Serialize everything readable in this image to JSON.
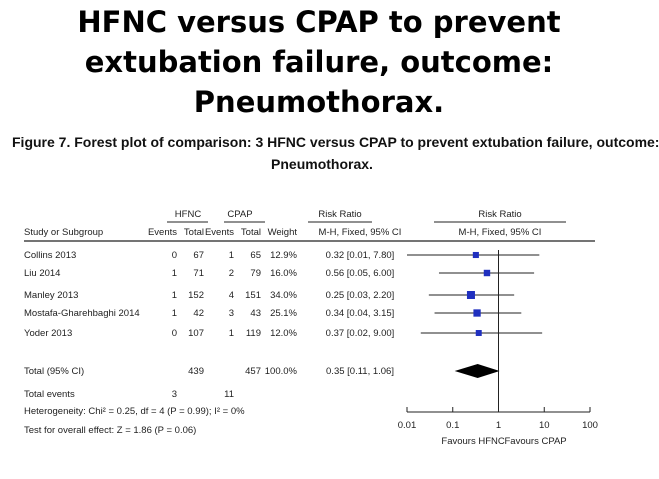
{
  "slide": {
    "title_lines": [
      "HFNC versus CPAP to prevent",
      "extubation failure, outcome:",
      "Pneumothorax."
    ]
  },
  "figure": {
    "caption_line1": "Figure 7.   Forest plot of comparison: 3 HFNC versus CPAP to prevent extubation failure, outcome:",
    "caption_line2": "Pneumothorax."
  },
  "chart_data": {
    "type": "table",
    "subtype": "forest-plot",
    "group_headers": {
      "hfnc": "HFNC",
      "cpap": "CPAP",
      "rr_text": "Risk Ratio",
      "rr_plot": "Risk Ratio"
    },
    "columns": [
      "Study or Subgroup",
      "Events",
      "Total",
      "Events",
      "Total",
      "Weight",
      "M-H, Fixed, 95% CI",
      "M-H, Fixed, 95% CI"
    ],
    "studies": [
      {
        "name": "Collins 2013",
        "hfnc_events": "0",
        "hfnc_total": "67",
        "cpap_events": "1",
        "cpap_total": "65",
        "weight": "12.9%",
        "ci_text": "0.32 [0.01, 7.80]",
        "rr": 0.32,
        "lo": 0.01,
        "hi": 7.8,
        "weight_pct": 12.9
      },
      {
        "name": "Liu 2014",
        "hfnc_events": "1",
        "hfnc_total": "71",
        "cpap_events": "2",
        "cpap_total": "79",
        "weight": "16.0%",
        "ci_text": "0.56 [0.05, 6.00]",
        "rr": 0.56,
        "lo": 0.05,
        "hi": 6.0,
        "weight_pct": 16.0
      },
      {
        "name": "Manley 2013",
        "hfnc_events": "1",
        "hfnc_total": "152",
        "cpap_events": "4",
        "cpap_total": "151",
        "weight": "34.0%",
        "ci_text": "0.25 [0.03, 2.20]",
        "rr": 0.25,
        "lo": 0.03,
        "hi": 2.2,
        "weight_pct": 34.0
      },
      {
        "name": "Mostafa-Gharehbaghi 2014",
        "hfnc_events": "1",
        "hfnc_total": "42",
        "cpap_events": "3",
        "cpap_total": "43",
        "weight": "25.1%",
        "ci_text": "0.34 [0.04, 3.15]",
        "rr": 0.34,
        "lo": 0.04,
        "hi": 3.15,
        "weight_pct": 25.1
      },
      {
        "name": "Yoder 2013",
        "hfnc_events": "0",
        "hfnc_total": "107",
        "cpap_events": "1",
        "cpap_total": "119",
        "weight": "12.0%",
        "ci_text": "0.37 [0.02, 9.00]",
        "rr": 0.37,
        "lo": 0.02,
        "hi": 9.0,
        "weight_pct": 12.0
      }
    ],
    "total": {
      "name": "Total (95% CI)",
      "hfnc_total": "439",
      "cpap_total": "457",
      "weight": "100.0%",
      "ci_text": "0.35 [0.11, 1.06]",
      "rr": 0.35,
      "lo": 0.11,
      "hi": 1.06
    },
    "total_events": {
      "name": "Total events",
      "hfnc": "3",
      "cpap": "11"
    },
    "heterogeneity": "Heterogeneity: Chi² = 0.25, df = 4 (P = 0.99); I² = 0%",
    "overall_effect": "Test for overall effect: Z = 1.86 (P = 0.06)",
    "x_axis": {
      "scale": "log",
      "xlim": [
        0.01,
        100
      ],
      "ticks": [
        0.01,
        0.1,
        1,
        10,
        100
      ],
      "tick_labels": [
        "0.01",
        "0.1",
        "1",
        "10",
        "100"
      ],
      "reference_line": 1
    },
    "favours_left": "Favours HFNC",
    "favours_right": "Favours CPAP",
    "marker_color": "#1f2fbf"
  }
}
